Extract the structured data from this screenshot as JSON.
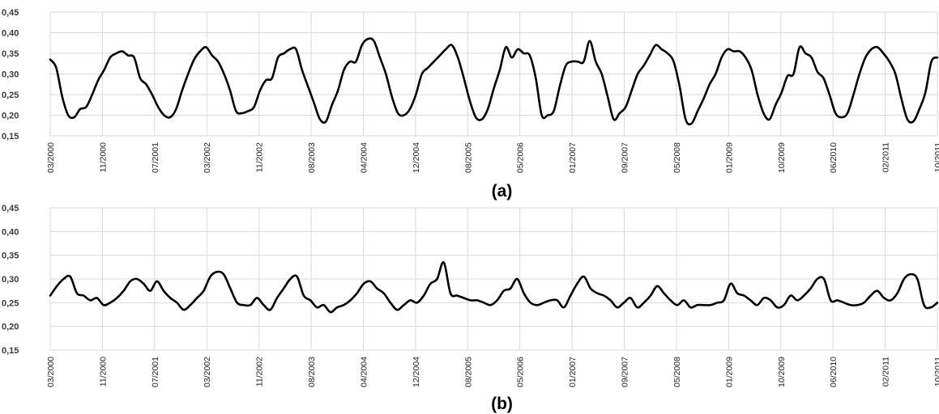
{
  "chart_data": [
    {
      "type": "line",
      "title": "(a)",
      "ylim": [
        0.15,
        0.45
      ],
      "y_ticks": [
        "0,15",
        "0,20",
        "0,25",
        "0,30",
        "0,35",
        "0,40",
        "0,45"
      ],
      "x_ticks": [
        "03/2000",
        "11/2000",
        "07/2001",
        "03/2002",
        "11/2002",
        "08/2003",
        "04/2004",
        "12/2004",
        "08/2005",
        "05/2006",
        "01/2007",
        "09/2007",
        "05/2008",
        "01/2009",
        "10/2009",
        "06/2010",
        "02/2011",
        "10/2011"
      ],
      "grid": true,
      "line_color": "#000000",
      "series": [
        {
          "values": [
            0.335,
            0.315,
            0.245,
            0.2,
            0.195,
            0.215,
            0.22,
            0.25,
            0.285,
            0.31,
            0.34,
            0.35,
            0.355,
            0.345,
            0.34,
            0.29,
            0.275,
            0.25,
            0.22,
            0.2,
            0.195,
            0.215,
            0.26,
            0.3,
            0.335,
            0.355,
            0.365,
            0.345,
            0.33,
            0.3,
            0.26,
            0.21,
            0.205,
            0.21,
            0.22,
            0.26,
            0.285,
            0.29,
            0.34,
            0.35,
            0.36,
            0.36,
            0.31,
            0.27,
            0.23,
            0.19,
            0.185,
            0.225,
            0.26,
            0.31,
            0.33,
            0.33,
            0.37,
            0.385,
            0.38,
            0.34,
            0.3,
            0.245,
            0.205,
            0.2,
            0.215,
            0.25,
            0.3,
            0.315,
            0.33,
            0.345,
            0.36,
            0.37,
            0.34,
            0.29,
            0.235,
            0.195,
            0.19,
            0.215,
            0.265,
            0.31,
            0.365,
            0.34,
            0.36,
            0.35,
            0.345,
            0.29,
            0.2,
            0.2,
            0.21,
            0.27,
            0.32,
            0.33,
            0.33,
            0.33,
            0.38,
            0.33,
            0.3,
            0.245,
            0.19,
            0.205,
            0.22,
            0.26,
            0.3,
            0.32,
            0.345,
            0.37,
            0.36,
            0.35,
            0.33,
            0.27,
            0.19,
            0.18,
            0.21,
            0.24,
            0.275,
            0.3,
            0.34,
            0.36,
            0.355,
            0.355,
            0.34,
            0.31,
            0.25,
            0.205,
            0.19,
            0.225,
            0.255,
            0.295,
            0.3,
            0.365,
            0.35,
            0.34,
            0.305,
            0.29,
            0.25,
            0.205,
            0.195,
            0.205,
            0.25,
            0.3,
            0.34,
            0.36,
            0.365,
            0.35,
            0.33,
            0.3,
            0.24,
            0.19,
            0.185,
            0.215,
            0.255,
            0.33,
            0.34
          ]
        }
      ]
    },
    {
      "type": "line",
      "title": "(b)",
      "ylim": [
        0.15,
        0.45
      ],
      "y_ticks": [
        "0,15",
        "0,20",
        "0,25",
        "0,30",
        "0,35",
        "0,40",
        "0,45"
      ],
      "x_ticks": [
        "03/2000",
        "11/2000",
        "07/2001",
        "03/2002",
        "11/2002",
        "08/2003",
        "04/2004",
        "12/2004",
        "08/2005",
        "05/2006",
        "01/2007",
        "09/2007",
        "05/2008",
        "01/2009",
        "10/2009",
        "06/2010",
        "02/2011",
        "10/2011"
      ],
      "grid": true,
      "line_color": "#000000",
      "series": [
        {
          "values": [
            0.265,
            0.285,
            0.3,
            0.305,
            0.27,
            0.265,
            0.255,
            0.26,
            0.245,
            0.25,
            0.26,
            0.275,
            0.295,
            0.3,
            0.29,
            0.275,
            0.295,
            0.275,
            0.26,
            0.25,
            0.235,
            0.245,
            0.26,
            0.275,
            0.305,
            0.315,
            0.31,
            0.28,
            0.25,
            0.245,
            0.245,
            0.26,
            0.245,
            0.235,
            0.26,
            0.28,
            0.3,
            0.305,
            0.265,
            0.255,
            0.24,
            0.245,
            0.23,
            0.24,
            0.245,
            0.255,
            0.27,
            0.29,
            0.295,
            0.28,
            0.27,
            0.25,
            0.235,
            0.245,
            0.255,
            0.25,
            0.265,
            0.29,
            0.3,
            0.335,
            0.27,
            0.265,
            0.26,
            0.255,
            0.255,
            0.25,
            0.245,
            0.255,
            0.275,
            0.28,
            0.3,
            0.27,
            0.25,
            0.245,
            0.25,
            0.255,
            0.255,
            0.24,
            0.265,
            0.29,
            0.305,
            0.28,
            0.27,
            0.265,
            0.255,
            0.24,
            0.25,
            0.26,
            0.24,
            0.25,
            0.265,
            0.285,
            0.27,
            0.255,
            0.245,
            0.255,
            0.24,
            0.245,
            0.245,
            0.245,
            0.25,
            0.255,
            0.29,
            0.27,
            0.265,
            0.255,
            0.245,
            0.26,
            0.255,
            0.24,
            0.245,
            0.265,
            0.255,
            0.265,
            0.28,
            0.3,
            0.3,
            0.255,
            0.255,
            0.25,
            0.245,
            0.245,
            0.25,
            0.265,
            0.275,
            0.26,
            0.255,
            0.27,
            0.3,
            0.31,
            0.3,
            0.245,
            0.24,
            0.25
          ]
        }
      ]
    }
  ]
}
